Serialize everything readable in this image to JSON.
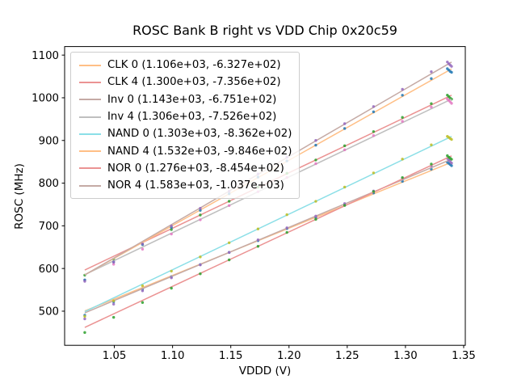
{
  "figure": {
    "title": "ROSC Bank B right vs VDD Chip 0x20c59",
    "background": "#ffffff",
    "spine_color": "#000000"
  },
  "axes": {
    "xlabel": "VDDD (V)",
    "ylabel": "ROSC (MHz)",
    "xlim": [
      1.0073,
      1.3514
    ],
    "ylim": [
      420,
      1120
    ],
    "x_tick_labels": [
      "1.05",
      "1.10",
      "1.15",
      "1.20",
      "1.25",
      "1.30",
      "1.35"
    ],
    "y_tick_labels": [
      "500",
      "600",
      "700",
      "800",
      "900",
      "1000",
      "1100"
    ],
    "grid": false,
    "legend_position": "upper-left"
  },
  "chart_data": {
    "type": "scatter",
    "title": "ROSC Bank B right vs VDD Chip 0x20c59",
    "xlabel": "VDDD (V)",
    "ylabel": "ROSC (MHz)",
    "xlim": [
      1.0073,
      1.3514
    ],
    "ylim": [
      420,
      1120
    ],
    "fit_x_range": [
      1.0246,
      1.3396
    ],
    "series": [
      {
        "name": "CLK 0",
        "legend_label": "CLK 0 (1.106e+03, -6.327e+02)",
        "slope": 1106,
        "intercept": -632.7,
        "line_color": "#ffbf86",
        "point_color": "#1f77b4",
        "x": [
          1.0246,
          1.0494,
          1.0742,
          1.099,
          1.1238,
          1.1486,
          1.1734,
          1.1982,
          1.223,
          1.2478,
          1.2726,
          1.2974,
          1.3222,
          1.336,
          1.3372,
          1.3384,
          1.3396
        ],
        "y": [
          490.5,
          521.9,
          551.4,
          580.8,
          609.2,
          637.7,
          665.1,
          693.5,
          719.9,
          748.4,
          776.8,
          804.2,
          832.7,
          848.9,
          846.2,
          843.6,
          840.9
        ]
      },
      {
        "name": "CLK 4",
        "legend_label": "CLK 4 (1.300e+03, -7.356e+02)",
        "slope": 1300,
        "intercept": -735.6,
        "line_color": "#eb9393",
        "point_color": "#2ca02c",
        "x": [
          1.0246,
          1.0494,
          1.0742,
          1.099,
          1.1238,
          1.1486,
          1.1734,
          1.1982,
          1.223,
          1.2478,
          1.2726,
          1.2974,
          1.3222,
          1.336,
          1.3372,
          1.3384,
          1.3396
        ],
        "y": [
          584.4,
          621.6,
          656.9,
          691.1,
          725.3,
          757.6,
          790.8,
          823.1,
          854.3,
          887.5,
          920.8,
          954.0,
          986.3,
          1006.2,
          1002.8,
          999.3,
          996.9
        ]
      },
      {
        "name": "Inv 0",
        "legend_label": "Inv 0 (1.143e+03, -6.751e+02)",
        "slope": 1143,
        "intercept": -675.1,
        "line_color": "#c5aaa5",
        "point_color": "#9467bd",
        "x": [
          1.0246,
          1.0494,
          1.0742,
          1.099,
          1.1238,
          1.1486,
          1.1734,
          1.1982,
          1.223,
          1.2478,
          1.2726,
          1.2974,
          1.3222,
          1.336,
          1.3372,
          1.3384,
          1.3396
        ],
        "y": [
          482.0,
          516.4,
          547.7,
          578.1,
          608.4,
          637.8,
          667.1,
          695.4,
          722.8,
          752.1,
          781.5,
          810.8,
          840.2,
          857.9,
          854.3,
          850.7,
          847.1
        ]
      },
      {
        "name": "Inv 4",
        "legend_label": "Inv 4 (1.306e+03, -7.526e+02)",
        "slope": 1306,
        "intercept": -752.6,
        "line_color": "#bfbfbf",
        "point_color": "#e377c2",
        "x": [
          1.0246,
          1.0494,
          1.0742,
          1.099,
          1.1238,
          1.1486,
          1.1734,
          1.1982,
          1.223,
          1.2478,
          1.2726,
          1.2974,
          1.3222,
          1.336,
          1.3372,
          1.3384,
          1.3396
        ],
        "y": [
          572.5,
          609.9,
          645.3,
          680.7,
          714.1,
          747.5,
          779.9,
          813.2,
          845.6,
          878.0,
          911.4,
          944.8,
          978.2,
          997.2,
          993.8,
          990.4,
          986.9
        ]
      },
      {
        "name": "NAND 0",
        "legend_label": "NAND 0 (1.303e+03, -8.362e+02)",
        "slope": 1303,
        "intercept": -836.2,
        "line_color": "#8bdfe7",
        "point_color": "#bcbd22",
        "x": [
          1.0246,
          1.0494,
          1.0742,
          1.099,
          1.1238,
          1.1486,
          1.1734,
          1.1982,
          1.223,
          1.2478,
          1.2726,
          1.2974,
          1.3222,
          1.336,
          1.3372,
          1.3384,
          1.3396
        ],
        "y": [
          487.9,
          524.2,
          559.5,
          593.8,
          627.1,
          660.4,
          692.7,
          726.1,
          757.4,
          790.7,
          824.0,
          856.3,
          889.6,
          909.6,
          907.2,
          904.7,
          902.3
        ]
      },
      {
        "name": "NAND 4",
        "legend_label": "NAND 4 (1.532e+03, -9.846e+02)",
        "slope": 1532,
        "intercept": -984.6,
        "line_color": "#ffbf86",
        "point_color": "#1f77b4",
        "x": [
          1.0246,
          1.0494,
          1.0742,
          1.099,
          1.1238,
          1.1486,
          1.1734,
          1.1982,
          1.223,
          1.2478,
          1.2726,
          1.2974,
          1.3222,
          1.336,
          1.3372,
          1.3384,
          1.3396
        ],
        "y": [
          573.1,
          615.1,
          656.1,
          696.1,
          736.1,
          775.1,
          814.1,
          852.0,
          889.0,
          928.0,
          967.0,
          1006.0,
          1045.0,
          1068.2,
          1065.0,
          1061.8,
          1059.7
        ]
      },
      {
        "name": "NOR 0",
        "legend_label": "NOR 0 (1.276e+03, -8.454e+02)",
        "slope": 1276,
        "intercept": -845.4,
        "line_color": "#eb9393",
        "point_color": "#2ca02c",
        "x": [
          1.0246,
          1.0494,
          1.0742,
          1.099,
          1.1238,
          1.1486,
          1.1734,
          1.1982,
          1.223,
          1.2478,
          1.2726,
          1.2974,
          1.3222,
          1.336,
          1.3372,
          1.3384,
          1.3396
        ],
        "y": [
          450.0,
          485.6,
          520.3,
          553.9,
          587.6,
          620.2,
          651.9,
          684.5,
          715.2,
          747.8,
          780.4,
          813.1,
          844.7,
          864.3,
          860.9,
          858.4,
          855.9
        ]
      },
      {
        "name": "NOR 4",
        "legend_label": "NOR 4 (1.583e+03, -1.037e+03)",
        "slope": 1583,
        "intercept": -1037,
        "line_color": "#c5aaa5",
        "point_color": "#9467bd",
        "x": [
          1.0246,
          1.0494,
          1.0742,
          1.099,
          1.1238,
          1.1486,
          1.1734,
          1.1982,
          1.223,
          1.2478,
          1.2726,
          1.2974,
          1.3222,
          1.336,
          1.3372,
          1.3384,
          1.3396
        ],
        "y": [
          569.9,
          615.2,
          657.5,
          699.7,
          741.0,
          781.2,
          821.5,
          860.8,
          900.0,
          939.3,
          979.5,
          1019.8,
          1061.0,
          1083.9,
          1079.8,
          1076.7,
          1073.6
        ]
      }
    ]
  }
}
